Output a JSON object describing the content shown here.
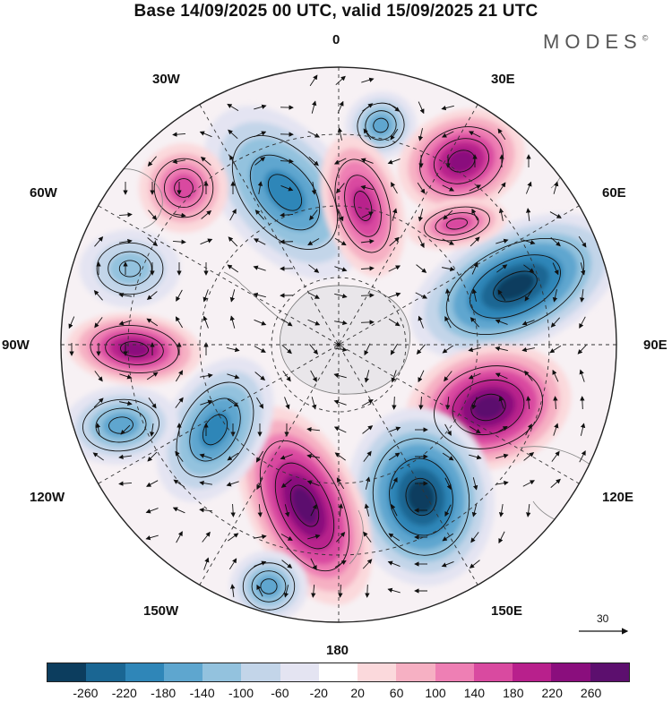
{
  "title": "Base 14/09/2025 00 UTC, valid 15/09/2025 21 UTC",
  "brand": "MODES",
  "brand_mark": "©",
  "longitude_labels": {
    "n0": "0",
    "e30": "30E",
    "e60": "60E",
    "e90": "90E",
    "e120": "120E",
    "e150": "150E",
    "s180": "180",
    "w150": "150W",
    "w120": "120W",
    "w90": "90W",
    "w60": "60W",
    "w30": "30W"
  },
  "reference_vector": {
    "label": "30"
  },
  "colorbar": {
    "colors": [
      "#0c3d5e",
      "#1a6693",
      "#2f86b8",
      "#5ea6cf",
      "#93c2de",
      "#c3d5e9",
      "#e4e4f2",
      "#ffffff",
      "#fbd9dc",
      "#f6b0c3",
      "#ee7fb4",
      "#d94aa0",
      "#b8208c",
      "#8a0e7d",
      "#5c0f6e"
    ],
    "ticks": [
      "-260",
      "-220",
      "-180",
      "-140",
      "-100",
      "-60",
      "-20",
      "20",
      "60",
      "100",
      "140",
      "180",
      "220",
      "260"
    ]
  },
  "anomalies": [
    {
      "id": "upper-blue-cell",
      "sign": "negative",
      "strength": 0.55
    },
    {
      "id": "upper-magenta-cell",
      "sign": "positive",
      "strength": 0.8
    },
    {
      "id": "center-blue-cell",
      "sign": "negative",
      "strength": 0.75
    },
    {
      "id": "center-magenta-cell",
      "sign": "positive",
      "strength": 0.75
    },
    {
      "id": "east-blue-cell",
      "sign": "negative",
      "strength": 1.0
    },
    {
      "id": "east-purple-cell",
      "sign": "positive",
      "strength": 1.0
    },
    {
      "id": "southeast-blue-cell",
      "sign": "negative",
      "strength": 1.0
    },
    {
      "id": "south-purple-cell",
      "sign": "positive",
      "strength": 1.0
    },
    {
      "id": "southwest-blue-cell",
      "sign": "negative",
      "strength": 0.75
    },
    {
      "id": "west-blue-cell",
      "sign": "negative",
      "strength": 0.6
    },
    {
      "id": "west-magenta-cell",
      "sign": "positive",
      "strength": 0.8
    },
    {
      "id": "northwest-blue-cell",
      "sign": "negative",
      "strength": 0.45
    },
    {
      "id": "northwest-pink-cell",
      "sign": "positive",
      "strength": 0.5
    },
    {
      "id": "south-small-blue-cell",
      "sign": "negative",
      "strength": 0.5
    },
    {
      "id": "ne-pink-cell",
      "sign": "positive",
      "strength": 0.5
    }
  ]
}
